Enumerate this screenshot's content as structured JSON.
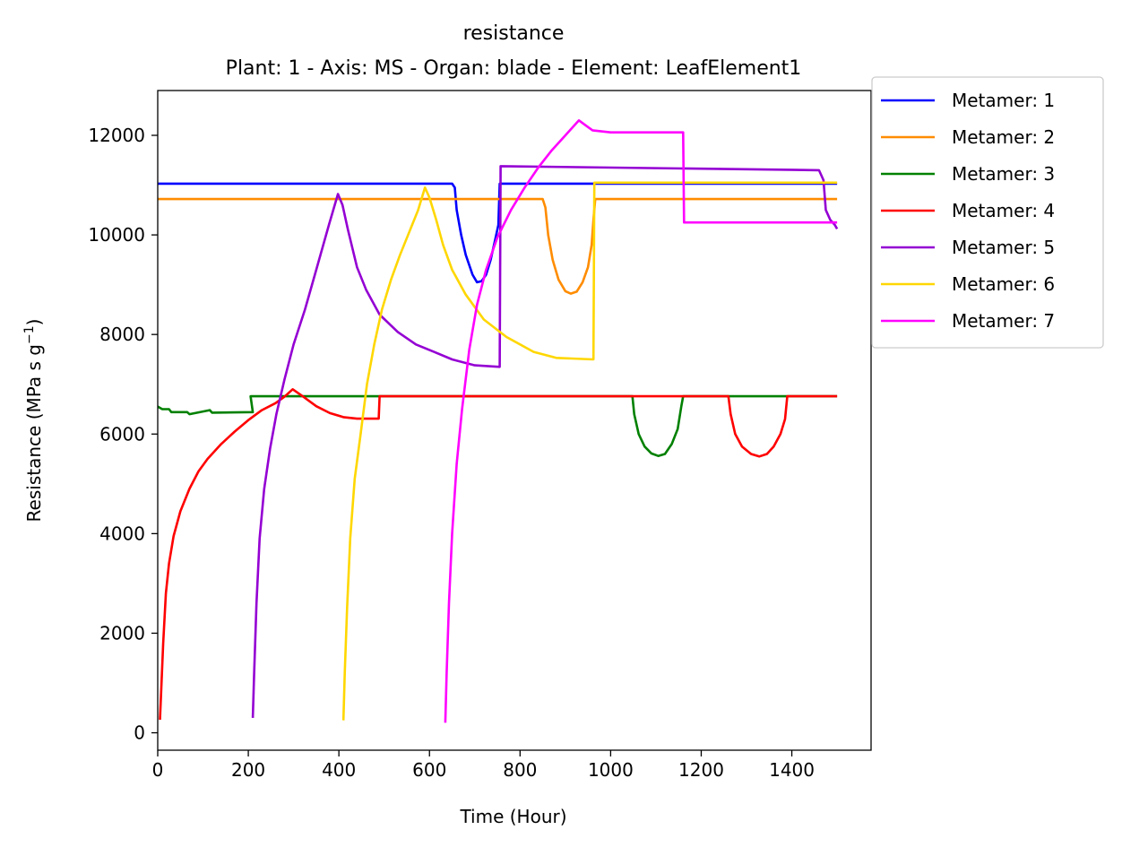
{
  "chart_data": {
    "type": "line",
    "title": "resistance",
    "subtitle": "Plant: 1 - Axis: MS - Organ: blade - Element: LeafElement1",
    "xlabel": "Time (Hour)",
    "ylabel": "Resistance (MPa s g",
    "ylabel_sup": "−1",
    "ylabel_close": ")",
    "xlim": [
      0,
      1575
    ],
    "ylim": [
      -350,
      12900
    ],
    "xticks": [
      0,
      200,
      400,
      600,
      800,
      1000,
      1200,
      1400
    ],
    "yticks": [
      0,
      2000,
      4000,
      6000,
      8000,
      10000,
      12000
    ],
    "legend_position": "outside-top-right",
    "series": [
      {
        "name": "Metamer: 1",
        "color": "#0000ff",
        "points": [
          [
            0,
            11030
          ],
          [
            650,
            11030
          ],
          [
            656,
            10950
          ],
          [
            660,
            10500
          ],
          [
            670,
            10000
          ],
          [
            680,
            9600
          ],
          [
            695,
            9200
          ],
          [
            705,
            9050
          ],
          [
            715,
            9070
          ],
          [
            725,
            9200
          ],
          [
            735,
            9500
          ],
          [
            745,
            9900
          ],
          [
            752,
            10200
          ],
          [
            755,
            11030
          ],
          [
            1500,
            11030
          ]
        ]
      },
      {
        "name": "Metamer: 2",
        "color": "#ff8c00",
        "points": [
          [
            0,
            10720
          ],
          [
            850,
            10720
          ],
          [
            856,
            10550
          ],
          [
            862,
            10000
          ],
          [
            872,
            9500
          ],
          [
            885,
            9100
          ],
          [
            900,
            8870
          ],
          [
            912,
            8820
          ],
          [
            925,
            8860
          ],
          [
            938,
            9050
          ],
          [
            950,
            9350
          ],
          [
            958,
            9800
          ],
          [
            962,
            10300
          ],
          [
            966,
            10720
          ],
          [
            1500,
            10720
          ]
        ]
      },
      {
        "name": "Metamer: 3",
        "color": "#008000",
        "points": [
          [
            0,
            6550
          ],
          [
            10,
            6500
          ],
          [
            25,
            6500
          ],
          [
            30,
            6440
          ],
          [
            65,
            6440
          ],
          [
            70,
            6400
          ],
          [
            115,
            6480
          ],
          [
            120,
            6430
          ],
          [
            210,
            6440
          ],
          [
            205,
            6760
          ],
          [
            1048,
            6760
          ],
          [
            1052,
            6400
          ],
          [
            1062,
            6000
          ],
          [
            1075,
            5750
          ],
          [
            1090,
            5610
          ],
          [
            1105,
            5560
          ],
          [
            1120,
            5600
          ],
          [
            1135,
            5800
          ],
          [
            1148,
            6100
          ],
          [
            1156,
            6550
          ],
          [
            1160,
            6760
          ],
          [
            1500,
            6760
          ]
        ]
      },
      {
        "name": "Metamer: 4",
        "color": "#ff0000",
        "points": [
          [
            5,
            260
          ],
          [
            8,
            900
          ],
          [
            12,
            1800
          ],
          [
            18,
            2800
          ],
          [
            25,
            3400
          ],
          [
            35,
            3950
          ],
          [
            50,
            4450
          ],
          [
            70,
            4900
          ],
          [
            90,
            5250
          ],
          [
            110,
            5500
          ],
          [
            140,
            5800
          ],
          [
            170,
            6050
          ],
          [
            200,
            6280
          ],
          [
            230,
            6480
          ],
          [
            260,
            6620
          ],
          [
            280,
            6750
          ],
          [
            298,
            6900
          ],
          [
            320,
            6760
          ],
          [
            350,
            6560
          ],
          [
            380,
            6420
          ],
          [
            410,
            6340
          ],
          [
            440,
            6310
          ],
          [
            488,
            6310
          ],
          [
            490,
            6760
          ],
          [
            1260,
            6760
          ],
          [
            1265,
            6400
          ],
          [
            1275,
            6000
          ],
          [
            1290,
            5750
          ],
          [
            1310,
            5600
          ],
          [
            1328,
            5550
          ],
          [
            1345,
            5600
          ],
          [
            1360,
            5750
          ],
          [
            1375,
            6000
          ],
          [
            1385,
            6300
          ],
          [
            1390,
            6760
          ],
          [
            1500,
            6760
          ]
        ]
      },
      {
        "name": "Metamer: 5",
        "color": "#9400d3",
        "points": [
          [
            210,
            300
          ],
          [
            213,
            1200
          ],
          [
            218,
            2600
          ],
          [
            225,
            3900
          ],
          [
            235,
            4900
          ],
          [
            248,
            5700
          ],
          [
            262,
            6400
          ],
          [
            280,
            7100
          ],
          [
            300,
            7800
          ],
          [
            325,
            8500
          ],
          [
            350,
            9300
          ],
          [
            378,
            10200
          ],
          [
            398,
            10820
          ],
          [
            408,
            10600
          ],
          [
            420,
            10100
          ],
          [
            440,
            9350
          ],
          [
            460,
            8900
          ],
          [
            490,
            8400
          ],
          [
            530,
            8050
          ],
          [
            570,
            7800
          ],
          [
            610,
            7650
          ],
          [
            650,
            7500
          ],
          [
            700,
            7380
          ],
          [
            755,
            7350
          ],
          [
            757,
            11380
          ],
          [
            1460,
            11300
          ],
          [
            1470,
            11100
          ],
          [
            1475,
            10500
          ],
          [
            1485,
            10300
          ],
          [
            1495,
            10200
          ],
          [
            1500,
            10120
          ]
        ]
      },
      {
        "name": "Metamer: 6",
        "color": "#ffd700",
        "points": [
          [
            410,
            250
          ],
          [
            413,
            1200
          ],
          [
            418,
            2500
          ],
          [
            425,
            3900
          ],
          [
            435,
            5100
          ],
          [
            448,
            6000
          ],
          [
            462,
            7000
          ],
          [
            478,
            7800
          ],
          [
            495,
            8500
          ],
          [
            515,
            9100
          ],
          [
            535,
            9600
          ],
          [
            555,
            10050
          ],
          [
            575,
            10500
          ],
          [
            590,
            10950
          ],
          [
            600,
            10750
          ],
          [
            615,
            10300
          ],
          [
            630,
            9800
          ],
          [
            650,
            9300
          ],
          [
            680,
            8800
          ],
          [
            720,
            8300
          ],
          [
            770,
            7950
          ],
          [
            830,
            7650
          ],
          [
            880,
            7530
          ],
          [
            962,
            7500
          ],
          [
            964,
            11050
          ],
          [
            1500,
            11050
          ]
        ]
      },
      {
        "name": "Metamer: 7",
        "color": "#ff00ff",
        "points": [
          [
            635,
            200
          ],
          [
            638,
            1200
          ],
          [
            643,
            2600
          ],
          [
            650,
            4000
          ],
          [
            660,
            5400
          ],
          [
            672,
            6500
          ],
          [
            688,
            7700
          ],
          [
            705,
            8600
          ],
          [
            725,
            9300
          ],
          [
            750,
            9950
          ],
          [
            780,
            10500
          ],
          [
            810,
            10950
          ],
          [
            840,
            11350
          ],
          [
            870,
            11700
          ],
          [
            900,
            12000
          ],
          [
            930,
            12300
          ],
          [
            945,
            12200
          ],
          [
            960,
            12100
          ],
          [
            1000,
            12060
          ],
          [
            1160,
            12060
          ],
          [
            1162,
            10250
          ],
          [
            1500,
            10250
          ]
        ]
      }
    ]
  }
}
